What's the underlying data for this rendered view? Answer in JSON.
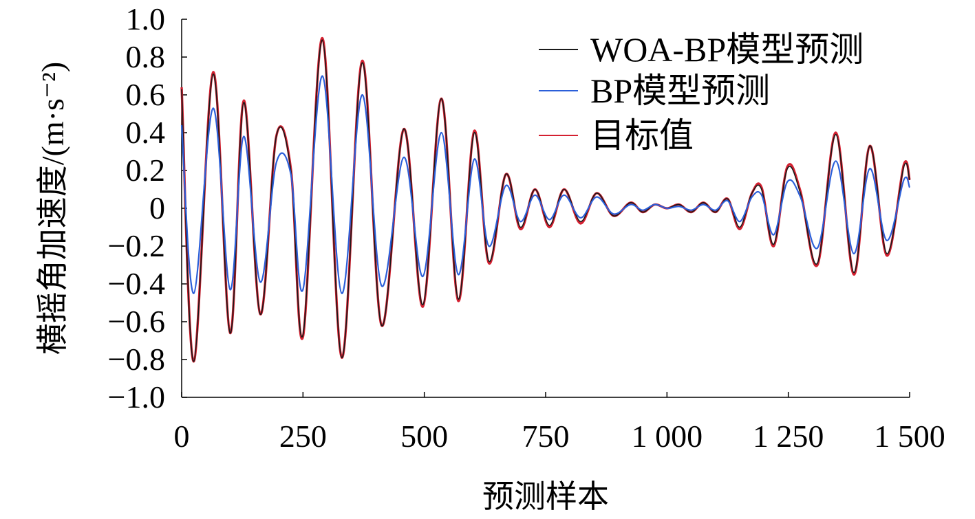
{
  "chart_data": {
    "type": "line",
    "xlabel": "预测样本",
    "ylabel": "横摇角加速度/(m·s⁻²)",
    "xlim": [
      0,
      1500
    ],
    "ylim": [
      -1.0,
      1.0
    ],
    "x_ticks": [
      0,
      250,
      500,
      750,
      1000,
      1250,
      1500
    ],
    "x_tick_labels": [
      "0",
      "250",
      "500",
      "750",
      "1 000",
      "1 250",
      "1 500"
    ],
    "y_ticks": [
      -1.0,
      -0.8,
      -0.6,
      -0.4,
      -0.2,
      0,
      0.2,
      0.4,
      0.6,
      0.8,
      1.0
    ],
    "y_tick_labels": [
      "−1.0",
      "−0.8",
      "−0.6",
      "−0.4",
      "−0.2",
      "0",
      "0.2",
      "0.4",
      "0.6",
      "0.8",
      "1.0"
    ],
    "grid": false,
    "legend_position": "top-right",
    "x": [
      0,
      25,
      65,
      100,
      128,
      162,
      195,
      225,
      250,
      290,
      330,
      372,
      412,
      458,
      497,
      535,
      570,
      603,
      633,
      668,
      698,
      728,
      758,
      788,
      822,
      855,
      890,
      925,
      950,
      975,
      1000,
      1025,
      1050,
      1075,
      1100,
      1125,
      1150,
      1175,
      1195,
      1220,
      1248,
      1275,
      1310,
      1348,
      1385,
      1418,
      1453,
      1488,
      1500
    ],
    "series": [
      {
        "name": "WOA-BP模型预测",
        "color": "#1a1a1a",
        "values": [
          0.63,
          -0.81,
          0.71,
          -0.66,
          0.56,
          -0.56,
          0.38,
          0.2,
          -0.67,
          0.89,
          -0.79,
          0.77,
          -0.62,
          0.42,
          -0.51,
          0.58,
          -0.48,
          0.4,
          -0.28,
          0.18,
          -0.1,
          0.1,
          -0.09,
          0.1,
          -0.07,
          0.08,
          -0.04,
          0.03,
          -0.02,
          0.02,
          0.0,
          0.02,
          -0.02,
          0.03,
          -0.02,
          0.05,
          -0.1,
          0.08,
          0.1,
          -0.19,
          0.21,
          0.08,
          -0.29,
          0.39,
          -0.34,
          0.33,
          -0.24,
          0.22,
          0.15
        ]
      },
      {
        "name": "BP模型预测",
        "color": "#2b5fd9",
        "values": [
          0.44,
          -0.45,
          0.53,
          -0.43,
          0.38,
          -0.39,
          0.24,
          0.18,
          -0.43,
          0.7,
          -0.45,
          0.6,
          -0.41,
          0.27,
          -0.36,
          0.4,
          -0.35,
          0.26,
          -0.2,
          0.12,
          -0.07,
          0.07,
          -0.06,
          0.07,
          -0.05,
          0.06,
          -0.03,
          0.02,
          -0.01,
          0.02,
          0.0,
          0.01,
          -0.01,
          0.02,
          -0.01,
          0.04,
          -0.07,
          0.06,
          0.07,
          -0.14,
          0.14,
          0.06,
          -0.21,
          0.25,
          -0.24,
          0.21,
          -0.17,
          0.15,
          0.11
        ]
      },
      {
        "name": "目标值",
        "color": "#d42030",
        "values": [
          0.64,
          -0.81,
          0.72,
          -0.66,
          0.57,
          -0.56,
          0.38,
          0.21,
          -0.68,
          0.9,
          -0.79,
          0.78,
          -0.62,
          0.42,
          -0.52,
          0.58,
          -0.49,
          0.41,
          -0.29,
          0.18,
          -0.11,
          0.1,
          -0.1,
          0.1,
          -0.08,
          0.08,
          -0.04,
          0.03,
          -0.02,
          0.02,
          0.0,
          0.02,
          -0.02,
          0.03,
          -0.02,
          0.05,
          -0.11,
          0.08,
          0.11,
          -0.2,
          0.22,
          0.09,
          -0.3,
          0.4,
          -0.35,
          0.33,
          -0.25,
          0.23,
          0.15
        ]
      }
    ]
  }
}
